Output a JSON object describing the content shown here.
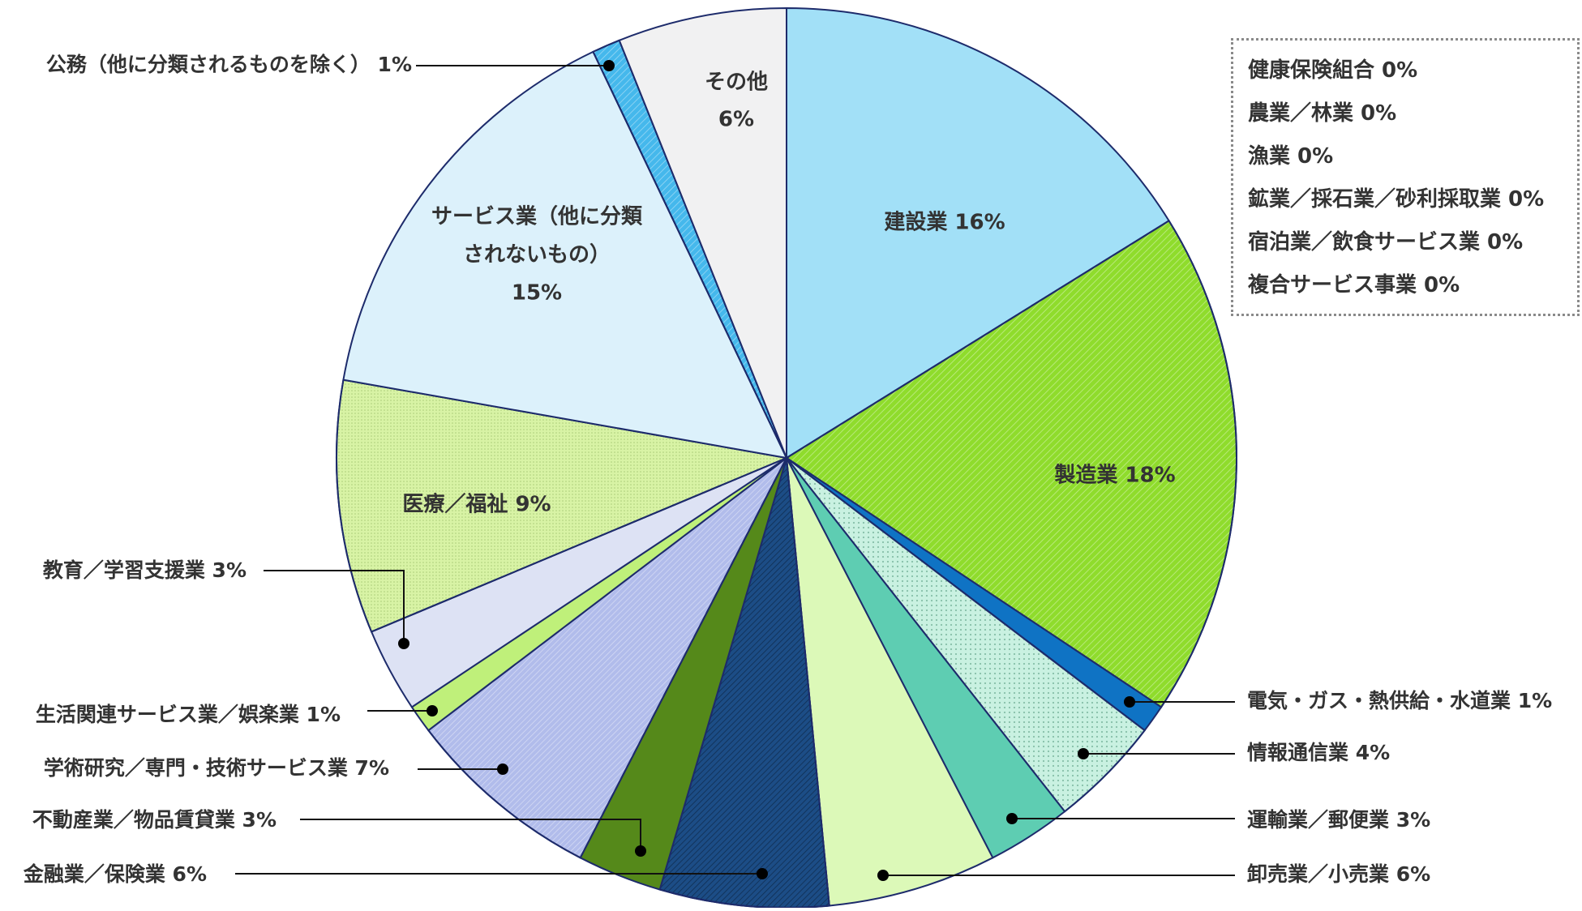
{
  "chart_data": {
    "type": "pie",
    "unit": "%",
    "slices": [
      {
        "label": "建設業",
        "value": 16,
        "text": "建設業 16%",
        "color": "#a2e0f7",
        "pattern": "none"
      },
      {
        "label": "製造業",
        "value": 18,
        "text": "製造業 18%",
        "color": "#8fdc2c",
        "pattern": "diagonal-hatch"
      },
      {
        "label": "電気・ガス・熱供給・水道業",
        "value": 1,
        "text": "電気・ガス・熱供給・水道業 1%",
        "color": "#0f73c4",
        "pattern": "none"
      },
      {
        "label": "情報通信業",
        "value": 4,
        "text": "情報通信業 4%",
        "color": "#c9f1e1",
        "pattern": "dots"
      },
      {
        "label": "運輸業／郵便業",
        "value": 3,
        "text": "運輸業／郵便業 3%",
        "color": "#5ecdb2",
        "pattern": "none"
      },
      {
        "label": "卸売業／小売業",
        "value": 6,
        "text": "卸売業／小売業 6%",
        "color": "#dcf9b8",
        "pattern": "none"
      },
      {
        "label": "金融業／保険業",
        "value": 6,
        "text": "金融業／保険業 6%",
        "color": "#1c4d86",
        "pattern": "diagonal-hatch-dark"
      },
      {
        "label": "不動産業／物品賃貸業",
        "value": 3,
        "text": "不動産業／物品賃貸業 3%",
        "color": "#55891a",
        "pattern": "none"
      },
      {
        "label": "学術研究／専門・技術サービス業",
        "value": 7,
        "text": "学術研究／専門・技術サービス業 7%",
        "color": "#b1bceb",
        "pattern": "diagonal-hatch-light"
      },
      {
        "label": "生活関連サービス業／娯楽業",
        "value": 1,
        "text": "生活関連サービス業／娯楽業 1%",
        "color": "#bff07a",
        "pattern": "none"
      },
      {
        "label": "教育／学習支援業",
        "value": 3,
        "text": "教育／学習支援業 3%",
        "color": "#dde2f4",
        "pattern": "none"
      },
      {
        "label": "医療／福祉",
        "value": 9,
        "text": "医療／福祉 9%",
        "color": "#d8f3a5",
        "pattern": "fine-dots"
      },
      {
        "label": "サービス業（他に分類されないもの）",
        "value": 15,
        "text_lines": [
          "サービス業（他に分類",
          "されないもの）",
          "15%"
        ],
        "color": "#dcf1fb",
        "pattern": "none"
      },
      {
        "label": "公務（他に分類されるものを除く）",
        "value": 1,
        "text": "公務（他に分類されるものを除く） 1%",
        "color": "#45b8ec",
        "pattern": "diagonal-hatch"
      },
      {
        "label": "その他",
        "value": 6,
        "text_lines": [
          "その他",
          "6%"
        ],
        "color": "#f1f1f2",
        "pattern": "none"
      }
    ],
    "zero_items": [
      "健康保険組合 0%",
      "農業／林業 0%",
      "漁業  0%",
      "鉱業／採石業／砂利採取業 0%",
      "宿泊業／飲食サービス業 0%",
      "複合サービス事業 0%"
    ],
    "title": "",
    "outline_color": "#1d2b6b"
  }
}
